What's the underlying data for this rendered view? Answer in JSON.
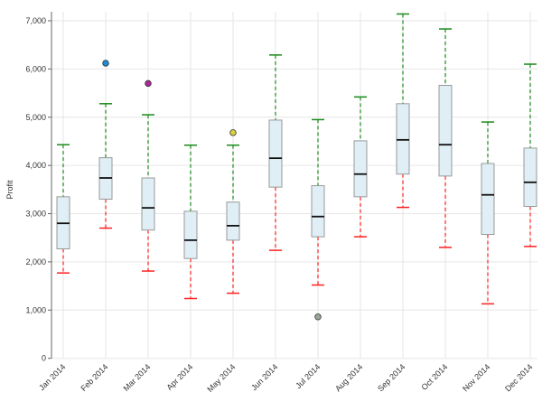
{
  "chart_data": {
    "type": "boxplot",
    "ylabel": "Profit",
    "xlabel": "",
    "ylim": [
      0,
      7200
    ],
    "yticks": [
      0,
      1000,
      2000,
      3000,
      4000,
      5000,
      6000,
      7000
    ],
    "ytick_labels": [
      "0",
      "1,000",
      "2,000",
      "3,000",
      "4,000",
      "5,000",
      "6,000",
      "7,000"
    ],
    "grid": true,
    "colors": {
      "box_fill": "#dfeff5",
      "box_stroke": "#999999",
      "median": "#111111",
      "upper_whisker": "#1a8a1a",
      "lower_whisker": "#ff2020"
    },
    "categories": [
      "Jan 2014",
      "Feb 2014",
      "Mar 2014",
      "Apr 2014",
      "May 2014",
      "Jun 2014",
      "Jul 2014",
      "Aug 2014",
      "Sep 2014",
      "Oct 2014",
      "Nov 2014",
      "Dec 2014"
    ],
    "boxes": [
      {
        "min": 1770,
        "q1": 2270,
        "median": 2800,
        "q3": 3350,
        "max": 4430,
        "outliers": []
      },
      {
        "min": 2700,
        "q1": 3300,
        "median": 3740,
        "q3": 4160,
        "max": 5280,
        "outliers": [
          {
            "value": 6120,
            "color": "#1f8ad6"
          }
        ]
      },
      {
        "min": 1810,
        "q1": 2660,
        "median": 3120,
        "q3": 3740,
        "max": 5050,
        "outliers": [
          {
            "value": 5700,
            "color": "#b0279b"
          }
        ]
      },
      {
        "min": 1240,
        "q1": 2070,
        "median": 2450,
        "q3": 3050,
        "max": 4420,
        "outliers": []
      },
      {
        "min": 1350,
        "q1": 2450,
        "median": 2750,
        "q3": 3240,
        "max": 4420,
        "outliers": [
          {
            "value": 4680,
            "color": "#d6d43a"
          }
        ]
      },
      {
        "min": 2240,
        "q1": 3550,
        "median": 4150,
        "q3": 4940,
        "max": 6290,
        "outliers": []
      },
      {
        "min": 1520,
        "q1": 2520,
        "median": 2940,
        "q3": 3580,
        "max": 4950,
        "outliers": [
          {
            "value": 860,
            "color": "#9aa89a"
          }
        ]
      },
      {
        "min": 2520,
        "q1": 3350,
        "median": 3820,
        "q3": 4510,
        "max": 5420,
        "outliers": []
      },
      {
        "min": 3130,
        "q1": 3820,
        "median": 4530,
        "q3": 5280,
        "max": 7140,
        "outliers": []
      },
      {
        "min": 2300,
        "q1": 3780,
        "median": 4430,
        "q3": 5660,
        "max": 6830,
        "outliers": []
      },
      {
        "min": 1130,
        "q1": 2570,
        "median": 3390,
        "q3": 4040,
        "max": 4900,
        "outliers": []
      },
      {
        "min": 2320,
        "q1": 3150,
        "median": 3650,
        "q3": 4360,
        "max": 6100,
        "outliers": []
      }
    ]
  }
}
